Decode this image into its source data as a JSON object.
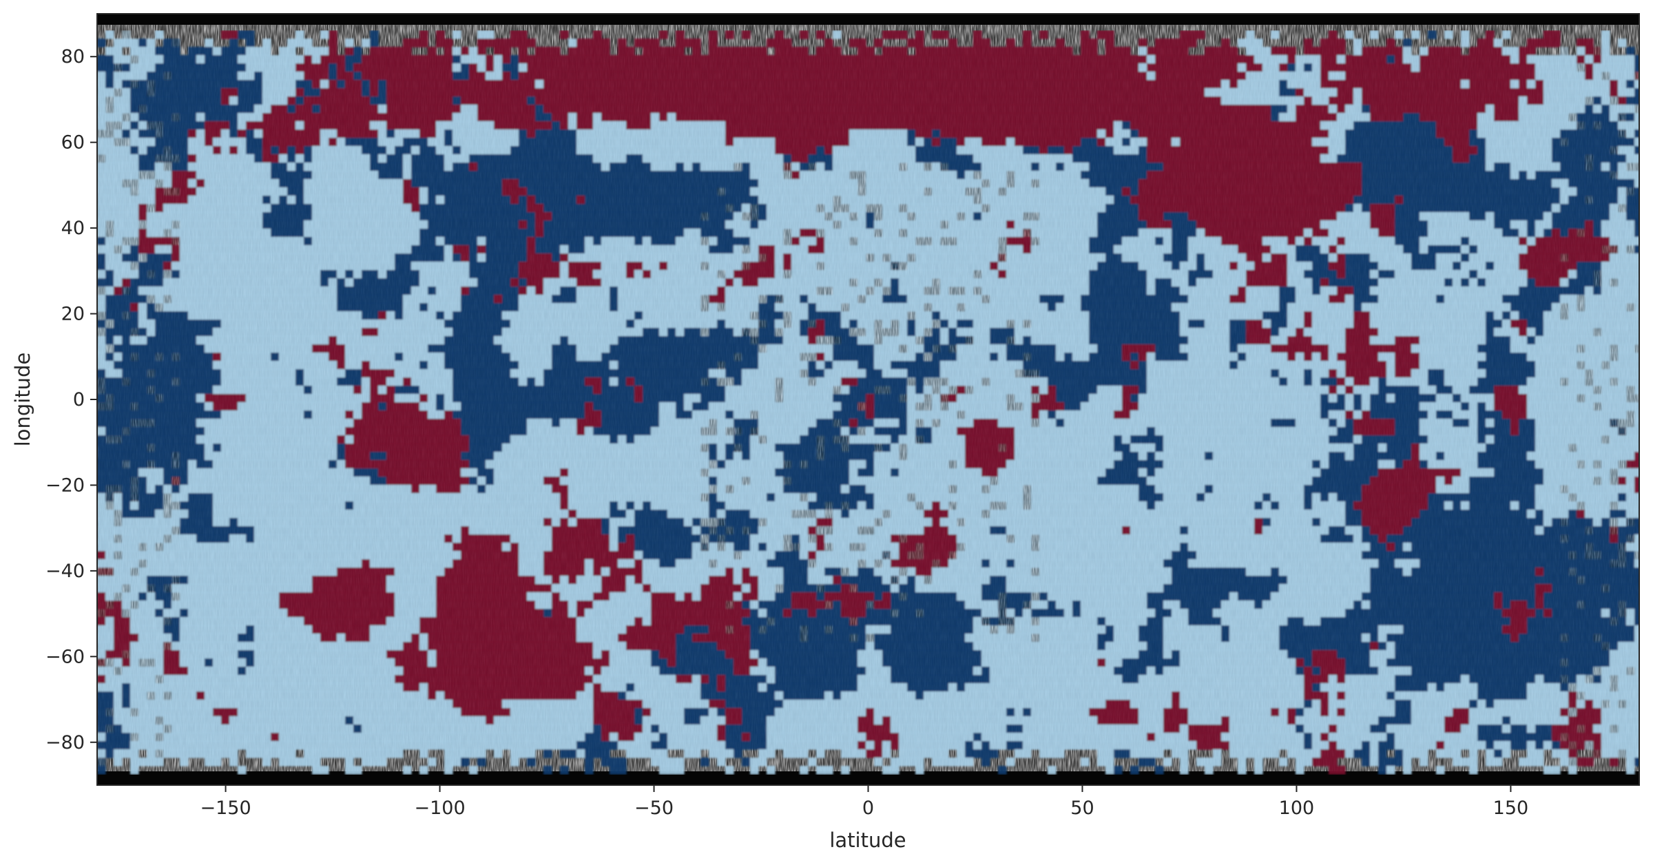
{
  "chart_data": {
    "type": "heatmap",
    "title": "",
    "xlabel": "latitude",
    "ylabel": "longitude",
    "xlim": [
      -180,
      180
    ],
    "ylim": [
      -90,
      90
    ],
    "xticks": [
      -150,
      -100,
      -50,
      0,
      50,
      100,
      150
    ],
    "yticks": [
      -80,
      -60,
      -40,
      -20,
      0,
      20,
      40,
      60,
      80
    ],
    "grid": false,
    "legend": "none",
    "colors": {
      "background_class": "#a6cee6",
      "dark_blue_class": "#0b3a6e",
      "red_class": "#7a0f2e",
      "terrain_base": "#3a3a3a"
    },
    "overlays": [
      {
        "class": "red_class",
        "x": [
          -180,
          180
        ],
        "y": [
          60,
          88
        ]
      },
      {
        "class": "red_class",
        "x": [
          -130,
          -40
        ],
        "y": [
          -75,
          -30
        ]
      },
      {
        "class": "red_class",
        "x": [
          -115,
          -90
        ],
        "y": [
          -20,
          5
        ]
      },
      {
        "class": "red_class",
        "x": [
          20,
          35
        ],
        "y": [
          -20,
          -5
        ]
      },
      {
        "class": "red_class",
        "x": [
          5,
          20
        ],
        "y": [
          -40,
          -30
        ]
      },
      {
        "class": "red_class",
        "x": [
          115,
          130
        ],
        "y": [
          -30,
          -15
        ]
      },
      {
        "class": "red_class",
        "x": [
          110,
          130
        ],
        "y": [
          5,
          20
        ]
      },
      {
        "class": "red_class",
        "x": [
          145,
          180
        ],
        "y": [
          25,
          45
        ]
      },
      {
        "class": "red_class",
        "x": [
          60,
          110
        ],
        "y": [
          35,
          70
        ]
      },
      {
        "class": "dark_blue_class",
        "x": [
          -100,
          -35
        ],
        "y": [
          35,
          60
        ]
      },
      {
        "class": "dark_blue_class",
        "x": [
          -75,
          -40
        ],
        "y": [
          -10,
          20
        ]
      },
      {
        "class": "dark_blue_class",
        "x": [
          -180,
          -150
        ],
        "y": [
          -35,
          35
        ]
      },
      {
        "class": "dark_blue_class",
        "x": [
          90,
          180
        ],
        "y": [
          -65,
          -15
        ]
      },
      {
        "class": "dark_blue_class",
        "x": [
          -50,
          30
        ],
        "y": [
          -70,
          -40
        ]
      },
      {
        "class": "dark_blue_class",
        "x": [
          100,
          155
        ],
        "y": [
          40,
          65
        ]
      },
      {
        "class": "dark_blue_class",
        "x": [
          35,
          75
        ],
        "y": [
          0,
          30
        ]
      }
    ]
  }
}
